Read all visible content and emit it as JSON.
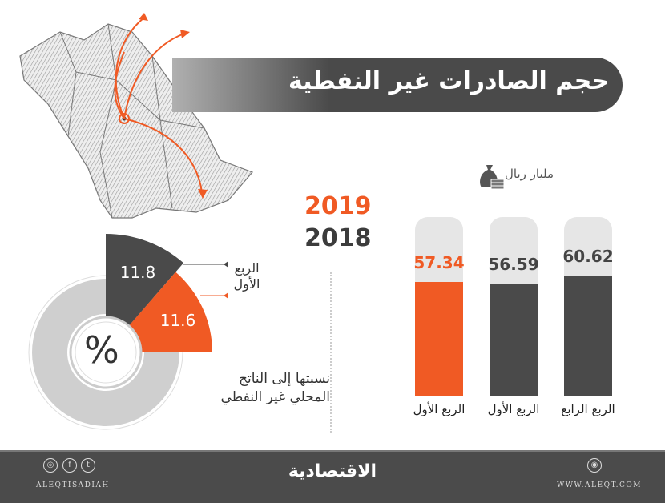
{
  "title": "حجم الصادرات غير النفطية",
  "years": {
    "current": "2019",
    "previous": "2018"
  },
  "colors": {
    "current": "#f05a24",
    "previous": "#4a4a4a",
    "track": "#e6e6e6"
  },
  "unit": "مليار ريال",
  "unit_icon": "money-bag-icon",
  "chart_data": [
    {
      "type": "bar",
      "title": "",
      "ylabel": "مليار ريال",
      "ylim": [
        0,
        90
      ],
      "categories": [
        "الربع الأول",
        "الربع الأول",
        "الربع الرابع"
      ],
      "years": [
        "2019",
        "2018",
        "2018"
      ],
      "values": [
        57.34,
        56.59,
        60.62
      ],
      "value_labels": [
        "57.34",
        "56.59",
        "60.62"
      ]
    },
    {
      "type": "pie",
      "title": "نسبتها إلى الناتج المحلي غير النفطي",
      "center_label": "%",
      "category": "الربع الأول",
      "series": [
        {
          "name": "2018",
          "value": 11.8,
          "label": "11.8"
        },
        {
          "name": "2019",
          "value": 11.6,
          "label": "11.6"
        }
      ]
    }
  ],
  "pie_label_line1": "الربع",
  "pie_label_line2": "الأول",
  "gdp_line1": "نسبتها إلى الناتج",
  "gdp_line2": "المحلي غير النفطي",
  "footer": {
    "logo": "الاقتصادية",
    "handle": "ALEQTISADIAH",
    "website": "WWW.ALEQT.COM",
    "social_icons": [
      "instagram-icon",
      "facebook-icon",
      "twitter-icon"
    ]
  }
}
